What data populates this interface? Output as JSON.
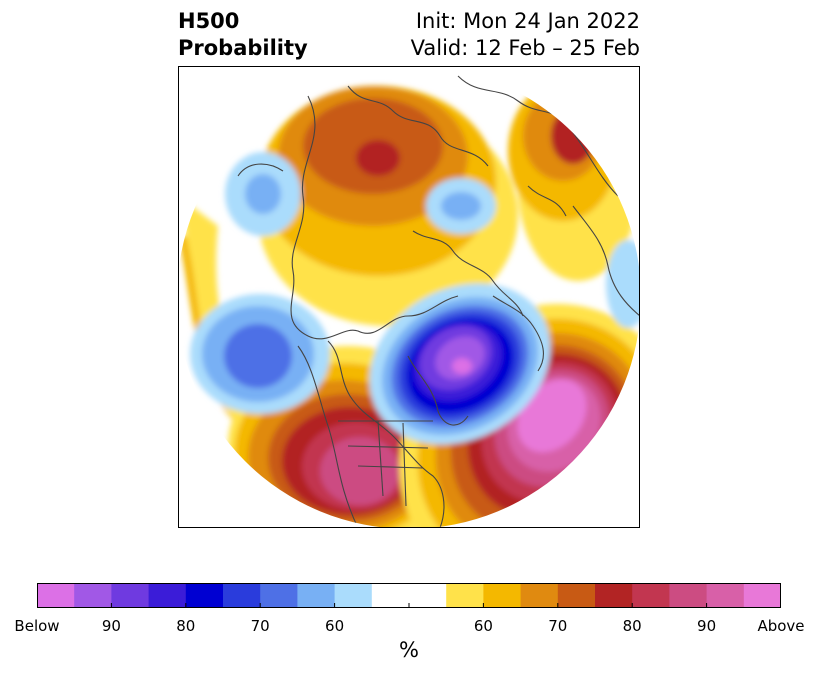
{
  "title": {
    "left_lines": [
      "H500",
      "Probability"
    ],
    "right_lines": [
      "Init: Mon 24 Jan 2022",
      "Valid: 12 Feb – 25 Feb"
    ]
  },
  "colorbar": {
    "unit": "%",
    "tick_labels": [
      "Below",
      "90",
      "80",
      "70",
      "60",
      "",
      "60",
      "70",
      "80",
      "90",
      "Above"
    ],
    "colors": [
      "#dc70e6",
      "#a158e6",
      "#6f3ae0",
      "#3b1cd8",
      "#0000d2",
      "#2a3cdc",
      "#4e70e6",
      "#78b0f4",
      "#aadcfc",
      "#ffffff",
      "#ffffff",
      "#ffe24a",
      "#f4b800",
      "#e08a10",
      "#c85a14",
      "#b22424",
      "#c23650",
      "#cc4c82",
      "#d860a8",
      "#e878d8"
    ]
  },
  "colors": {
    "land_outline": "#444444",
    "below_normal": "#0000d2",
    "above_normal": "#cc4c82"
  }
}
